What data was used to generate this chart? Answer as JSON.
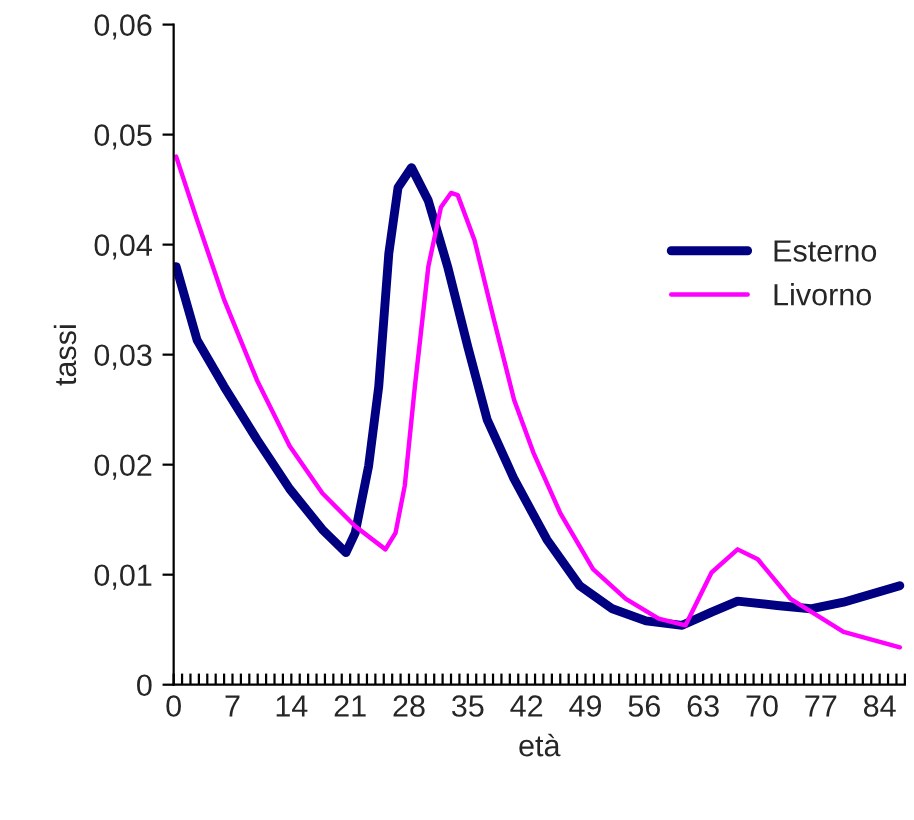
{
  "chart_data": {
    "type": "line",
    "xlabel": "età",
    "ylabel": "tassi",
    "series": [
      {
        "name": "Esterno",
        "color": "#000080",
        "x": [
          0.3,
          2.8,
          6,
          9.9,
          13.8,
          17.7,
          20.5,
          21.6,
          23.2,
          24.4,
          25.6,
          26.7,
          28.3,
          30.3,
          32.6,
          35,
          37.3,
          40.5,
          44.4,
          48.3,
          52.2,
          56.2,
          60.5,
          64,
          67.1,
          71.8,
          75.8,
          79.7,
          86.4
        ],
        "values": [
          0.038,
          0.0313,
          0.0271,
          0.0223,
          0.0178,
          0.0141,
          0.012,
          0.0138,
          0.0199,
          0.0271,
          0.0392,
          0.0452,
          0.047,
          0.044,
          0.038,
          0.0307,
          0.0241,
          0.0187,
          0.0132,
          0.009,
          0.0069,
          0.0058,
          0.0054,
          0.0066,
          0.0076,
          0.0072,
          0.0069,
          0.0075,
          0.009
        ]
      },
      {
        "name": "Livorno",
        "color": "#ff00ff",
        "x": [
          0.3,
          2.8,
          6,
          9.9,
          13.8,
          17.7,
          21.6,
          25.2,
          26.4,
          27.5,
          28.7,
          30.3,
          31.8,
          33,
          33.8,
          35.8,
          38.1,
          40.5,
          42.8,
          46,
          49.9,
          53.8,
          57.7,
          60.9,
          64,
          67.1,
          69.5,
          73.4,
          79.7,
          86.4
        ],
        "values": [
          0.048,
          0.0422,
          0.035,
          0.0277,
          0.0217,
          0.0174,
          0.0144,
          0.0123,
          0.0138,
          0.0181,
          0.0271,
          0.038,
          0.0434,
          0.0447,
          0.0445,
          0.0404,
          0.0332,
          0.0259,
          0.0211,
          0.0156,
          0.0105,
          0.0078,
          0.006,
          0.0054,
          0.0102,
          0.0123,
          0.0114,
          0.0078,
          0.0048,
          0.0034
        ]
      }
    ],
    "xlim": [
      0,
      87
    ],
    "xticks": [
      0,
      {
        "value": 1,
        "label": null
      },
      {
        "value": 2,
        "label": null
      },
      {
        "value": 3,
        "label": null
      },
      {
        "value": 4,
        "label": null
      },
      {
        "value": 5,
        "label": null
      },
      {
        "value": 6,
        "label": null
      },
      7,
      {
        "value": 8,
        "label": null
      },
      {
        "value": 9,
        "label": null
      },
      {
        "value": 10,
        "label": null
      },
      {
        "value": 11,
        "label": null
      },
      {
        "value": 12,
        "label": null
      },
      {
        "value": 13,
        "label": null
      },
      14,
      {
        "value": 15,
        "label": null
      },
      {
        "value": 16,
        "label": null
      },
      {
        "value": 17,
        "label": null
      },
      {
        "value": 18,
        "label": null
      },
      {
        "value": 19,
        "label": null
      },
      {
        "value": 20,
        "label": null
      },
      21,
      {
        "value": 22,
        "label": null
      },
      {
        "value": 23,
        "label": null
      },
      {
        "value": 24,
        "label": null
      },
      {
        "value": 25,
        "label": null
      },
      {
        "value": 26,
        "label": null
      },
      {
        "value": 27,
        "label": null
      },
      28,
      {
        "value": 29,
        "label": null
      },
      {
        "value": 30,
        "label": null
      },
      {
        "value": 31,
        "label": null
      },
      {
        "value": 32,
        "label": null
      },
      {
        "value": 33,
        "label": null
      },
      {
        "value": 34,
        "label": null
      },
      35,
      {
        "value": 36,
        "label": null
      },
      {
        "value": 37,
        "label": null
      },
      {
        "value": 38,
        "label": null
      },
      {
        "value": 39,
        "label": null
      },
      {
        "value": 40,
        "label": null
      },
      {
        "value": 41,
        "label": null
      },
      42,
      {
        "value": 43,
        "label": null
      },
      {
        "value": 44,
        "label": null
      },
      {
        "value": 45,
        "label": null
      },
      {
        "value": 46,
        "label": null
      },
      {
        "value": 47,
        "label": null
      },
      {
        "value": 48,
        "label": null
      },
      49,
      {
        "value": 50,
        "label": null
      },
      {
        "value": 51,
        "label": null
      },
      {
        "value": 52,
        "label": null
      },
      {
        "value": 53,
        "label": null
      },
      {
        "value": 54,
        "label": null
      },
      {
        "value": 55,
        "label": null
      },
      56,
      {
        "value": 57,
        "label": null
      },
      {
        "value": 58,
        "label": null
      },
      {
        "value": 59,
        "label": null
      },
      {
        "value": 60,
        "label": null
      },
      {
        "value": 61,
        "label": null
      },
      {
        "value": 62,
        "label": null
      },
      63,
      {
        "value": 64,
        "label": null
      },
      {
        "value": 65,
        "label": null
      },
      {
        "value": 66,
        "label": null
      },
      {
        "value": 67,
        "label": null
      },
      {
        "value": 68,
        "label": null
      },
      {
        "value": 69,
        "label": null
      },
      70,
      {
        "value": 71,
        "label": null
      },
      {
        "value": 72,
        "label": null
      },
      {
        "value": 73,
        "label": null
      },
      {
        "value": 74,
        "label": null
      },
      {
        "value": 75,
        "label": null
      },
      {
        "value": 76,
        "label": null
      },
      77,
      {
        "value": 78,
        "label": null
      },
      {
        "value": 79,
        "label": null
      },
      {
        "value": 80,
        "label": null
      },
      {
        "value": 81,
        "label": null
      },
      {
        "value": 82,
        "label": null
      },
      {
        "value": 83,
        "label": null
      },
      84,
      {
        "value": 85,
        "label": null
      },
      {
        "value": 86,
        "label": null
      },
      {
        "value": 87,
        "label": null
      }
    ],
    "ylim": [
      0,
      0.06
    ],
    "yticks": [
      0,
      {
        "value": 0.01,
        "label": "0,01"
      },
      {
        "value": 0.02,
        "label": "0,02"
      },
      {
        "value": 0.03,
        "label": "0,03"
      },
      {
        "value": 0.04,
        "label": "0,04"
      },
      {
        "value": 0.05,
        "label": "0,05"
      },
      {
        "value": 0.06,
        "label": "0,06"
      }
    ],
    "legend": "right",
    "grid": false,
    "marker": "none",
    "line_style": "solid"
  }
}
